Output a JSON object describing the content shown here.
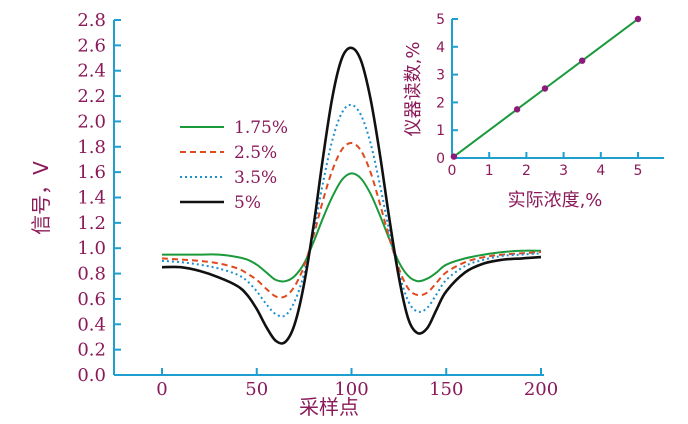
{
  "colors": {
    "axis": "#1e9fd0",
    "text": "#8b1a5a",
    "inset_line": "#1a9a3a",
    "inset_marker": "#8b1a7a"
  },
  "chart_data": [
    {
      "type": "line",
      "xlabel": "采样点",
      "ylabel": "信号，V",
      "xlim": [
        0,
        200
      ],
      "ylim": [
        0,
        2.8
      ],
      "xticks": [
        "0",
        "50",
        "100",
        "150",
        "200"
      ],
      "yticks": [
        "0.0",
        "0.2",
        "0.4",
        "0.6",
        "0.8",
        "1.0",
        "1.2",
        "1.4",
        "1.6",
        "1.8",
        "2.0",
        "2.2",
        "2.4",
        "2.6",
        "2.8"
      ],
      "legend_position": "left",
      "series": [
        {
          "name": "1.75%",
          "color": "#1a9a3a",
          "dash": "solid",
          "x": [
            0,
            10,
            20,
            30,
            40,
            45,
            50,
            55,
            60,
            65,
            70,
            75,
            80,
            85,
            90,
            95,
            100,
            105,
            110,
            115,
            120,
            125,
            130,
            135,
            140,
            145,
            150,
            160,
            170,
            180,
            190,
            200
          ],
          "y": [
            0.95,
            0.95,
            0.95,
            0.95,
            0.93,
            0.91,
            0.87,
            0.81,
            0.75,
            0.74,
            0.78,
            0.88,
            1.05,
            1.24,
            1.41,
            1.54,
            1.59,
            1.55,
            1.43,
            1.26,
            1.07,
            0.89,
            0.78,
            0.74,
            0.76,
            0.81,
            0.87,
            0.92,
            0.95,
            0.97,
            0.98,
            0.98
          ]
        },
        {
          "name": "2.5%",
          "color": "#e04a20",
          "dash": "dashed",
          "x": [
            0,
            10,
            20,
            30,
            40,
            45,
            50,
            55,
            60,
            65,
            70,
            75,
            80,
            85,
            90,
            95,
            100,
            105,
            110,
            115,
            120,
            125,
            130,
            135,
            140,
            145,
            150,
            160,
            170,
            180,
            190,
            200
          ],
          "y": [
            0.92,
            0.91,
            0.9,
            0.88,
            0.84,
            0.8,
            0.75,
            0.68,
            0.62,
            0.62,
            0.7,
            0.86,
            1.1,
            1.38,
            1.62,
            1.78,
            1.83,
            1.77,
            1.6,
            1.35,
            1.08,
            0.84,
            0.68,
            0.63,
            0.65,
            0.73,
            0.81,
            0.89,
            0.93,
            0.95,
            0.96,
            0.97
          ]
        },
        {
          "name": "3.5%",
          "color": "#1e90d0",
          "dash": "dotted",
          "x": [
            0,
            10,
            20,
            30,
            40,
            45,
            50,
            55,
            60,
            65,
            70,
            75,
            80,
            85,
            90,
            95,
            100,
            105,
            110,
            115,
            120,
            125,
            130,
            135,
            140,
            145,
            150,
            160,
            170,
            180,
            190,
            200
          ],
          "y": [
            0.9,
            0.89,
            0.87,
            0.84,
            0.79,
            0.74,
            0.66,
            0.56,
            0.48,
            0.47,
            0.58,
            0.8,
            1.13,
            1.52,
            1.86,
            2.07,
            2.13,
            2.05,
            1.83,
            1.5,
            1.13,
            0.81,
            0.58,
            0.5,
            0.53,
            0.64,
            0.75,
            0.86,
            0.91,
            0.94,
            0.95,
            0.96
          ]
        },
        {
          "name": "5%",
          "color": "#111111",
          "dash": "solid",
          "x": [
            0,
            10,
            20,
            30,
            40,
            45,
            50,
            55,
            60,
            65,
            70,
            75,
            80,
            85,
            90,
            95,
            100,
            105,
            110,
            115,
            120,
            125,
            130,
            135,
            140,
            145,
            150,
            160,
            170,
            180,
            190,
            200
          ],
          "y": [
            0.85,
            0.85,
            0.82,
            0.77,
            0.7,
            0.63,
            0.52,
            0.38,
            0.27,
            0.26,
            0.4,
            0.72,
            1.18,
            1.72,
            2.2,
            2.5,
            2.58,
            2.48,
            2.18,
            1.74,
            1.23,
            0.77,
            0.44,
            0.33,
            0.37,
            0.52,
            0.66,
            0.81,
            0.88,
            0.91,
            0.92,
            0.93
          ]
        }
      ]
    },
    {
      "type": "line",
      "xlabel": "实际浓度,%",
      "ylabel": "仪器读数,%",
      "xlim": [
        0,
        5
      ],
      "ylim": [
        0,
        5
      ],
      "xticks": [
        "0",
        "1",
        "2",
        "3",
        "4",
        "5"
      ],
      "yticks": [
        "0",
        "1",
        "2",
        "3",
        "4",
        "5"
      ],
      "series": [
        {
          "x": [
            0.05,
            1.75,
            2.5,
            3.5,
            5.0
          ],
          "y": [
            0.05,
            1.75,
            2.5,
            3.5,
            5.0
          ],
          "color": "#1a9a3a",
          "marker_color": "#8b1a7a"
        }
      ]
    }
  ]
}
